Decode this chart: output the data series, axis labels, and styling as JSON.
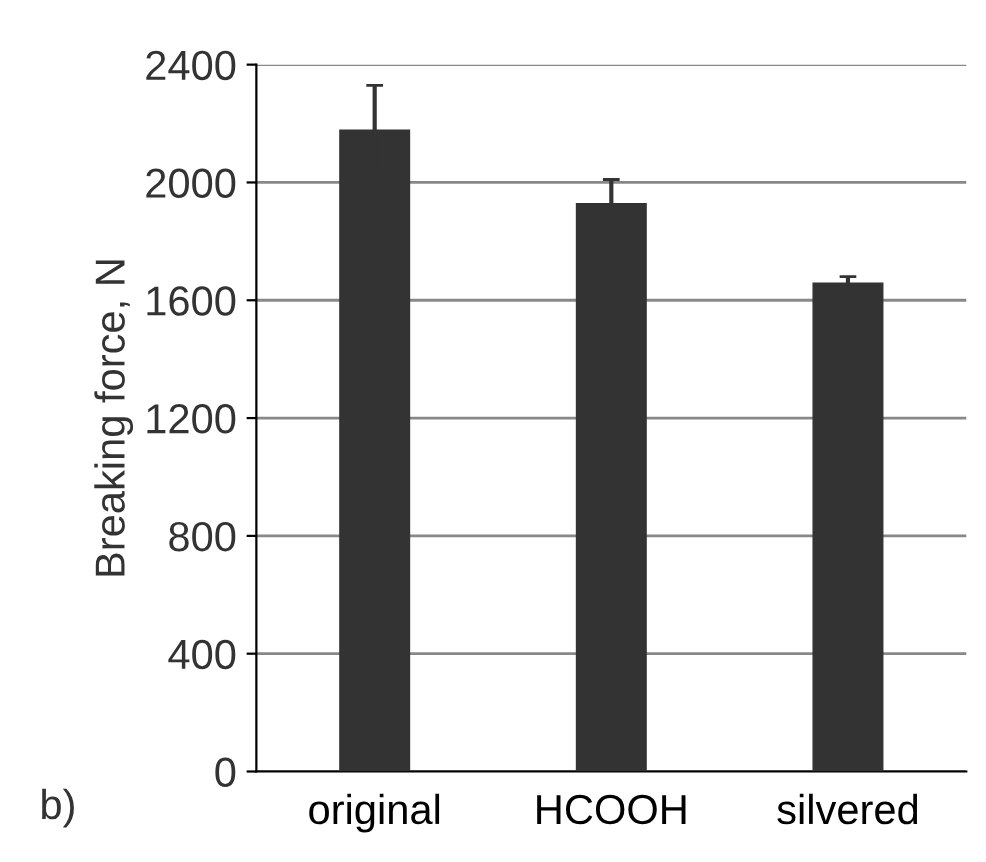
{
  "chart_data": {
    "type": "bar",
    "ylabel": "Breaking force, N",
    "categories": [
      "original",
      "HCOOH",
      "silvered"
    ],
    "values": [
      2180,
      1930,
      1660
    ],
    "errors": [
      150,
      80,
      20
    ],
    "color": "#333333",
    "ylim": [
      0,
      2400
    ],
    "yticks": [
      0,
      400,
      800,
      1200,
      1600,
      2000,
      2400
    ],
    "grid": "y",
    "annotations": [
      "b)"
    ]
  }
}
